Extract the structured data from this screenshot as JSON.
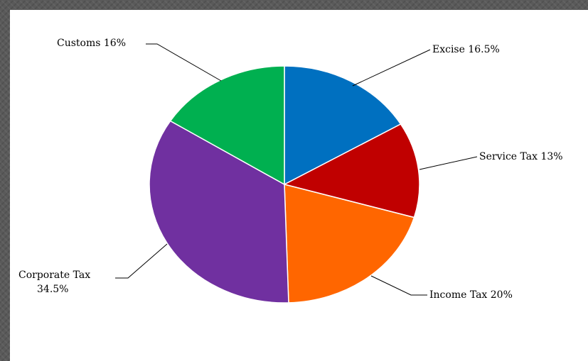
{
  "chart_data": {
    "type": "pie",
    "slices": [
      {
        "key": "excise",
        "label": "Excise 16.5%",
        "value": 16.5,
        "color": "#0070C0"
      },
      {
        "key": "service",
        "label": "Service Tax 13%",
        "value": 13,
        "color": "#C00000"
      },
      {
        "key": "income",
        "label": "Income Tax 20%",
        "value": 20,
        "color": "#FF6600"
      },
      {
        "key": "corporate",
        "label": "Corporate Tax 34.5%",
        "label_lines": [
          "Corporate Tax",
          "34.5%"
        ],
        "value": 34.5,
        "color": "#7030A0"
      },
      {
        "key": "customs",
        "label": "Customs 16%",
        "value": 16,
        "color": "#00B050"
      }
    ]
  }
}
